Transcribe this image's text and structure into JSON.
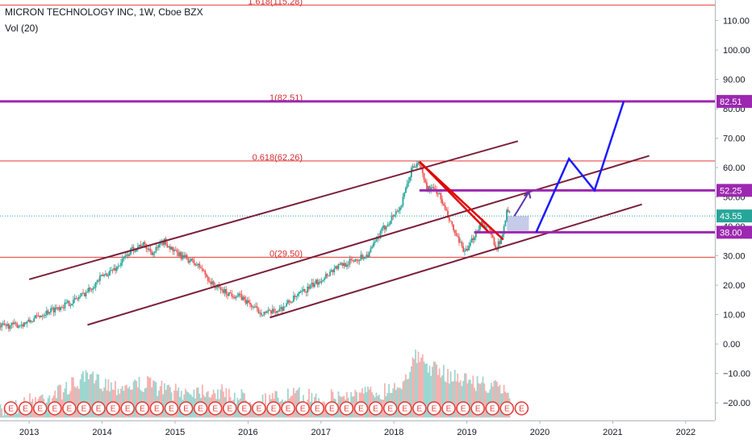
{
  "header": {
    "title": "MICRON TECHNOLOGY INC, 1W, Cboe BZX",
    "indicator": "Vol (20)"
  },
  "colors": {
    "up": "#26a69a",
    "down": "#ef5350",
    "channel": "#7b1f3a",
    "fib": "#e53935",
    "purple": "#9c27b0",
    "projection": "#1a1aff",
    "arrow": "#5e35b1",
    "triangle": "#e00000",
    "last_price": "#26a69a",
    "target": "#9c27b0"
  },
  "chart_data": {
    "type": "candlestick",
    "y_axis": {
      "ticks": [
        "110.00",
        "100.00",
        "90.00",
        "80.00",
        "70.00",
        "60.00",
        "50.00",
        "40.00",
        "30.00",
        "20.00",
        "10.00",
        "0.00",
        "−10.00",
        "−20.00"
      ],
      "range": [
        -26,
        117
      ]
    },
    "x_axis": {
      "ticks": [
        "2013",
        "2014",
        "2015",
        "2016",
        "2017",
        "2018",
        "2019",
        "2020",
        "2021",
        "2022"
      ],
      "range": [
        2012.6,
        2022.4
      ]
    },
    "price_path": [
      [
        2012.6,
        6.0
      ],
      [
        2012.85,
        6.5
      ],
      [
        2013.0,
        7.5
      ],
      [
        2013.2,
        10.5
      ],
      [
        2013.4,
        12.5
      ],
      [
        2013.6,
        14.5
      ],
      [
        2013.8,
        18.0
      ],
      [
        2014.0,
        23.0
      ],
      [
        2014.2,
        26.0
      ],
      [
        2014.4,
        32.0
      ],
      [
        2014.55,
        34.0
      ],
      [
        2014.7,
        31.0
      ],
      [
        2014.85,
        35.0
      ],
      [
        2015.0,
        31.0
      ],
      [
        2015.2,
        28.5
      ],
      [
        2015.35,
        26.0
      ],
      [
        2015.5,
        20.5
      ],
      [
        2015.7,
        17.5
      ],
      [
        2015.9,
        16.0
      ],
      [
        2016.0,
        14.0
      ],
      [
        2016.15,
        11.0
      ],
      [
        2016.3,
        10.5
      ],
      [
        2016.45,
        12.0
      ],
      [
        2016.6,
        15.0
      ],
      [
        2016.8,
        18.5
      ],
      [
        2017.0,
        22.0
      ],
      [
        2017.2,
        26.0
      ],
      [
        2017.45,
        28.5
      ],
      [
        2017.65,
        30.5
      ],
      [
        2017.85,
        39.0
      ],
      [
        2018.0,
        44.0
      ],
      [
        2018.1,
        47.0
      ],
      [
        2018.25,
        60.0
      ],
      [
        2018.35,
        61.5
      ],
      [
        2018.45,
        53.0
      ],
      [
        2018.6,
        52.0
      ],
      [
        2018.75,
        42.5
      ],
      [
        2018.9,
        34.0
      ],
      [
        2019.0,
        31.0
      ],
      [
        2019.1,
        37.0
      ],
      [
        2019.2,
        41.5
      ],
      [
        2019.3,
        39.0
      ],
      [
        2019.4,
        33.0
      ],
      [
        2019.48,
        35.5
      ],
      [
        2019.55,
        46.5
      ],
      [
        2019.6,
        43.55
      ]
    ],
    "volume_path": [
      [
        2012.6,
        -22
      ],
      [
        2013.0,
        -18
      ],
      [
        2013.4,
        -15
      ],
      [
        2013.8,
        -10
      ],
      [
        2014.2,
        -13
      ],
      [
        2014.6,
        -12
      ],
      [
        2015.0,
        -15
      ],
      [
        2015.4,
        -14
      ],
      [
        2015.8,
        -16
      ],
      [
        2016.2,
        -18
      ],
      [
        2016.6,
        -16
      ],
      [
        2017.0,
        -17
      ],
      [
        2017.4,
        -16
      ],
      [
        2017.8,
        -15
      ],
      [
        2018.1,
        -12
      ],
      [
        2018.3,
        -3
      ],
      [
        2018.6,
        -8
      ],
      [
        2018.9,
        -10
      ],
      [
        2019.2,
        -12
      ],
      [
        2019.6,
        -15
      ]
    ],
    "fib_levels": [
      {
        "label": "1.618(115.28)",
        "value": 115.28
      },
      {
        "label": "1(82.51)",
        "value": 82.51
      },
      {
        "label": "0.618(62.26)",
        "value": 62.26
      },
      {
        "label": "0(29.50)",
        "value": 29.5
      }
    ],
    "price_tags": [
      {
        "label": "82.51",
        "value": 82.51,
        "kind": "target"
      },
      {
        "label": "52.25",
        "value": 52.25,
        "kind": "target"
      },
      {
        "label": "43.55",
        "value": 43.55,
        "kind": "last"
      },
      {
        "label": "38.00",
        "value": 38.0,
        "kind": "target"
      }
    ],
    "horizontal_levels": [
      {
        "value": 82.51,
        "from": 2012.6,
        "to": 2022.4
      },
      {
        "value": 52.25,
        "from": 2018.35,
        "to": 2022.4
      },
      {
        "value": 38.0,
        "from": 2019.1,
        "to": 2022.4
      }
    ],
    "channels": [
      {
        "from": [
          2013.0,
          22.0
        ],
        "to": [
          2019.7,
          69.0
        ]
      },
      {
        "from": [
          2013.8,
          6.5
        ],
        "to": [
          2021.5,
          64.0
        ]
      },
      {
        "from": [
          2016.3,
          9.0
        ],
        "to": [
          2021.4,
          47.5
        ]
      }
    ],
    "triangle": [
      [
        2018.35,
        62.0
      ],
      [
        2019.5,
        35.5
      ],
      [
        2018.35,
        62.0
      ],
      [
        2019.3,
        38.0
      ]
    ],
    "projection_path": [
      [
        2019.95,
        38.0
      ],
      [
        2020.4,
        63.0
      ],
      [
        2020.75,
        52.25
      ],
      [
        2021.15,
        82.51
      ]
    ],
    "arrow_curve": [
      [
        2019.65,
        43.5
      ],
      [
        2019.75,
        49.0
      ],
      [
        2019.85,
        52.25
      ]
    ],
    "earnings_markers": {
      "label": "E",
      "count": 36,
      "start": 2012.75,
      "end": 2019.75
    }
  }
}
